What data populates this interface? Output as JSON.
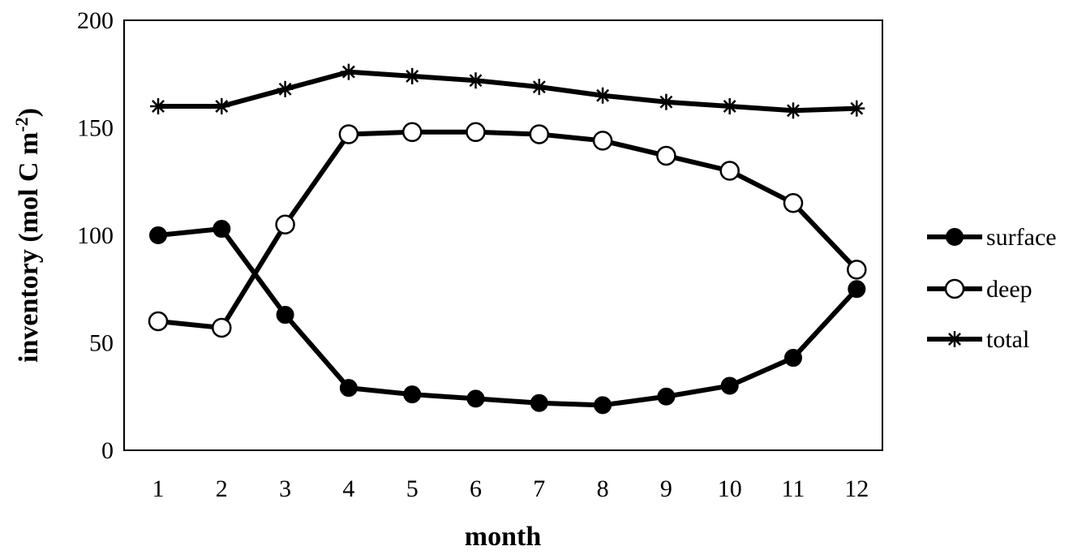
{
  "chart_data": {
    "type": "line",
    "title": "",
    "xlabel": "month",
    "ylabel": "inventory (mol C m",
    "ylabel_sup": "-2",
    "ylabel_close": ")",
    "ylim": [
      0,
      200
    ],
    "yticks": [
      0,
      50,
      100,
      150,
      200
    ],
    "x": [
      1,
      2,
      3,
      4,
      5,
      6,
      7,
      8,
      9,
      10,
      11,
      12
    ],
    "grid": false,
    "legend_position": "right",
    "series": [
      {
        "name": "surface",
        "marker": "filled-circle",
        "values": [
          100,
          103,
          63,
          29,
          26,
          24,
          22,
          21,
          25,
          30,
          43,
          75
        ]
      },
      {
        "name": "deep",
        "marker": "open-circle",
        "values": [
          60,
          57,
          105,
          147,
          148,
          148,
          147,
          144,
          137,
          130,
          115,
          84
        ]
      },
      {
        "name": "total",
        "marker": "asterisk",
        "values": [
          160,
          160,
          168,
          176,
          174,
          172,
          169,
          165,
          162,
          160,
          158,
          159
        ]
      }
    ],
    "line_color": "#000000"
  }
}
